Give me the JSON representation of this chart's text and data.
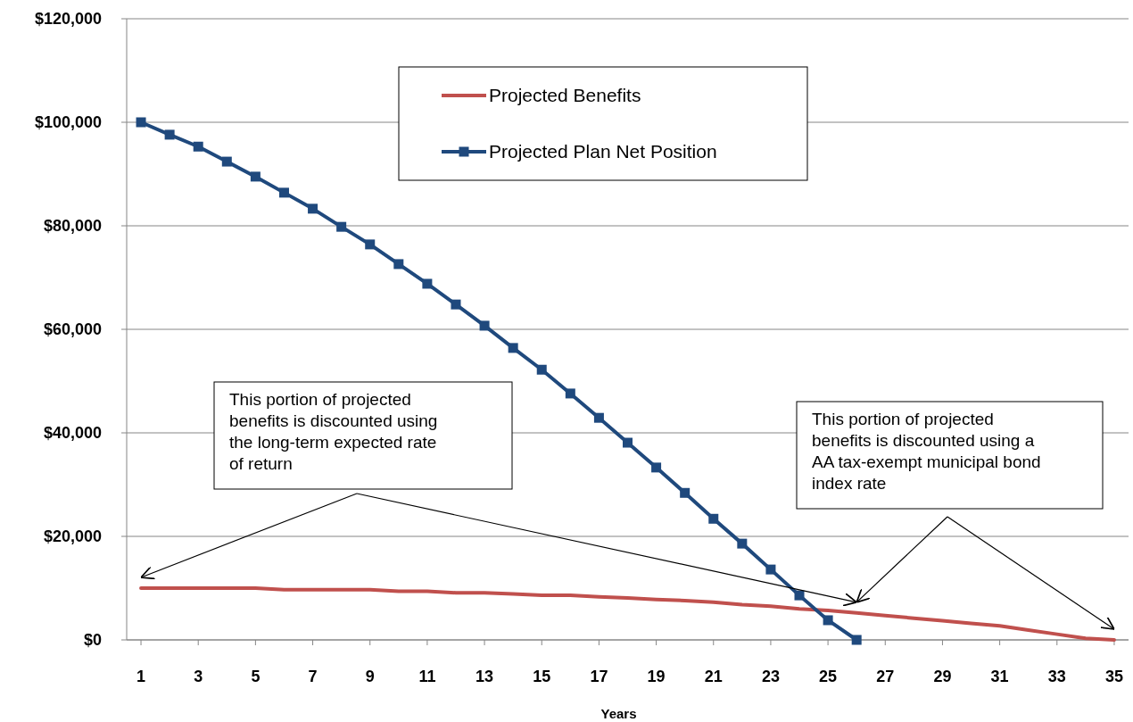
{
  "chart_data": {
    "type": "line",
    "xlabel": "Years",
    "x": [
      1,
      2,
      3,
      4,
      5,
      6,
      7,
      8,
      9,
      10,
      11,
      12,
      13,
      14,
      15,
      16,
      17,
      18,
      19,
      20,
      21,
      22,
      23,
      24,
      25,
      26,
      27,
      28,
      29,
      30,
      31,
      32,
      33,
      34,
      35
    ],
    "xlim": [
      0.5,
      35.5
    ],
    "xticks": [
      1,
      3,
      5,
      7,
      9,
      11,
      13,
      15,
      17,
      19,
      21,
      23,
      25,
      27,
      29,
      31,
      33,
      35
    ],
    "ylim": [
      0,
      120000
    ],
    "yticks": [
      {
        "value": 0,
        "label": "$0"
      },
      {
        "value": 20000,
        "label": "$20,000"
      },
      {
        "value": 40000,
        "label": "$40,000"
      },
      {
        "value": 60000,
        "label": "$60,000"
      },
      {
        "value": 80000,
        "label": "$80,000"
      },
      {
        "value": 100000,
        "label": "$100,000"
      },
      {
        "value": 120000,
        "label": "$120,000"
      }
    ],
    "grid": "y",
    "legend": "top",
    "series": [
      {
        "name": "Projected Benefits",
        "color": "#c0504d",
        "marker": "none",
        "values": [
          10000,
          10000,
          10000,
          10000,
          10000,
          9700,
          9700,
          9700,
          9700,
          9400,
          9400,
          9100,
          9100,
          8900,
          8600,
          8600,
          8300,
          8100,
          7800,
          7600,
          7300,
          6800,
          6500,
          6000,
          5700,
          5200,
          4700,
          4200,
          3700,
          3200,
          2700,
          1900,
          1100,
          300,
          0
        ]
      },
      {
        "name": "Projected Plan Net Position",
        "color": "#1f497d",
        "marker": "square",
        "values": [
          100000,
          97600,
          95300,
          92400,
          89500,
          86400,
          83300,
          79800,
          76400,
          72600,
          68800,
          64800,
          60700,
          56400,
          52200,
          47600,
          42900,
          38100,
          33300,
          28400,
          23400,
          18600,
          13600,
          8600,
          3800,
          0,
          null,
          null,
          null,
          null,
          null,
          null,
          null,
          null,
          null
        ]
      }
    ],
    "annotations": [
      "This portion of projected benefits is discounted using the long-term expected rate of return",
      "This portion of projected benefits is discounted using a AA tax-exempt municipal bond index rate"
    ]
  }
}
